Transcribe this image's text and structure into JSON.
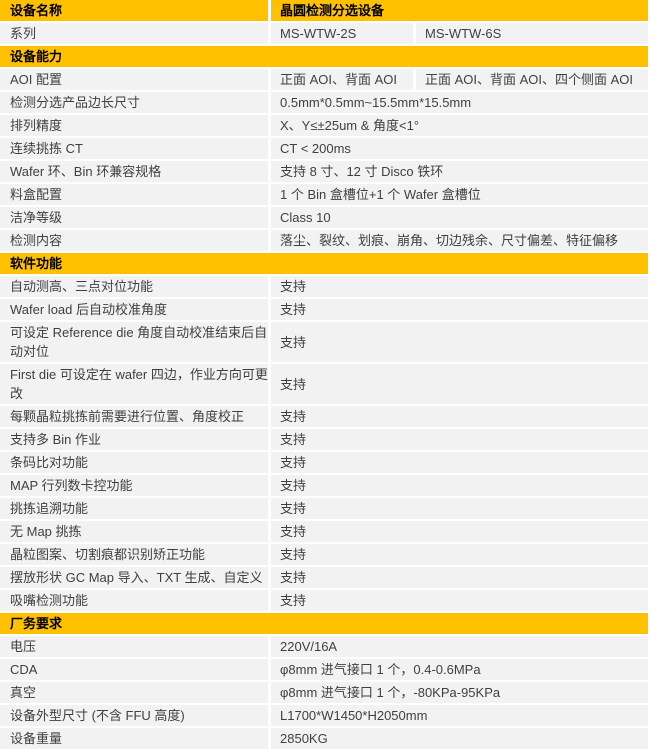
{
  "colors": {
    "gold": "#FFC000",
    "row_bg": "#F2F2F2",
    "gap": "#FFFFFF",
    "text": "#3F3F3F",
    "header_text": "#000000"
  },
  "rows": [
    {
      "type": "header",
      "label": "设备名称",
      "values": [
        "晶圆检测分选设备"
      ]
    },
    {
      "type": "split",
      "label": "系列",
      "values": [
        "MS-WTW-2S",
        "MS-WTW-6S"
      ]
    },
    {
      "type": "section",
      "label": "设备能力"
    },
    {
      "type": "split",
      "label": "AOI 配置",
      "values": [
        "正面 AOI、背面 AOI",
        "正面 AOI、背面 AOI、四个侧面 AOI"
      ]
    },
    {
      "type": "merged",
      "label": "检测分选产品边长尺寸",
      "values": [
        "0.5mm*0.5mm~15.5mm*15.5mm"
      ]
    },
    {
      "type": "merged",
      "label": "排列精度",
      "values": [
        "X、Y≤±25um & 角度<1°"
      ]
    },
    {
      "type": "merged",
      "label": "连续挑拣 CT",
      "values": [
        "CT < 200ms"
      ]
    },
    {
      "type": "merged",
      "label": "Wafer 环、Bin 环兼容规格",
      "values": [
        "支持 8 寸、12 寸 Disco 铁环"
      ]
    },
    {
      "type": "merged",
      "label": "料盒配置",
      "values": [
        "1 个 Bin 盒槽位+1 个 Wafer 盒槽位"
      ]
    },
    {
      "type": "merged",
      "label": "洁净等级",
      "values": [
        "Class 10"
      ]
    },
    {
      "type": "merged",
      "label": "检测内容",
      "values": [
        "落尘、裂纹、划痕、崩角、切边残余、尺寸偏差、特征偏移"
      ]
    },
    {
      "type": "section",
      "label": "软件功能"
    },
    {
      "type": "merged",
      "label": "自动测高、三点对位功能",
      "values": [
        "支持"
      ]
    },
    {
      "type": "merged",
      "label": "Wafer load 后自动校准角度",
      "values": [
        "支持"
      ]
    },
    {
      "type": "merged",
      "label": "可设定 Reference die 角度自动校准结束后自动对位",
      "values": [
        "支持"
      ],
      "tall": true
    },
    {
      "type": "merged",
      "label": "First die 可设定在 wafer 四边，作业方向可更改",
      "values": [
        "支持"
      ],
      "tall": true
    },
    {
      "type": "merged",
      "label": "每颗晶粒挑拣前需要进行位置、角度校正",
      "values": [
        "支持"
      ]
    },
    {
      "type": "merged",
      "label": "支持多 Bin 作业",
      "values": [
        "支持"
      ]
    },
    {
      "type": "merged",
      "label": "条码比对功能",
      "values": [
        "支持"
      ]
    },
    {
      "type": "merged",
      "label": "MAP 行列数卡控功能",
      "values": [
        "支持"
      ]
    },
    {
      "type": "merged",
      "label": "挑拣追溯功能",
      "values": [
        "支持"
      ]
    },
    {
      "type": "merged",
      "label": "无 Map 挑拣",
      "values": [
        "支持"
      ]
    },
    {
      "type": "merged",
      "label": "晶粒图案、切割痕都识别矫正功能",
      "values": [
        "支持"
      ]
    },
    {
      "type": "merged",
      "label": "摆放形状 GC Map 导入、TXT 生成、自定义",
      "values": [
        "支持"
      ]
    },
    {
      "type": "merged",
      "label": "吸嘴检测功能",
      "values": [
        "支持"
      ]
    },
    {
      "type": "section",
      "label": "厂务要求"
    },
    {
      "type": "merged",
      "label": "电压",
      "values": [
        "220V/16A"
      ]
    },
    {
      "type": "merged",
      "label": "CDA",
      "values": [
        "φ8mm 进气接口 1 个，0.4-0.6MPa"
      ]
    },
    {
      "type": "merged",
      "label": "真空",
      "values": [
        "φ8mm 进气接口 1 个，-80KPa-95KPa"
      ]
    },
    {
      "type": "merged",
      "label": "设备外型尺寸 (不含 FFU 高度)",
      "values": [
        "L1700*W1450*H2050mm"
      ]
    },
    {
      "type": "merged",
      "label": "设备重量",
      "values": [
        "2850KG"
      ]
    }
  ]
}
